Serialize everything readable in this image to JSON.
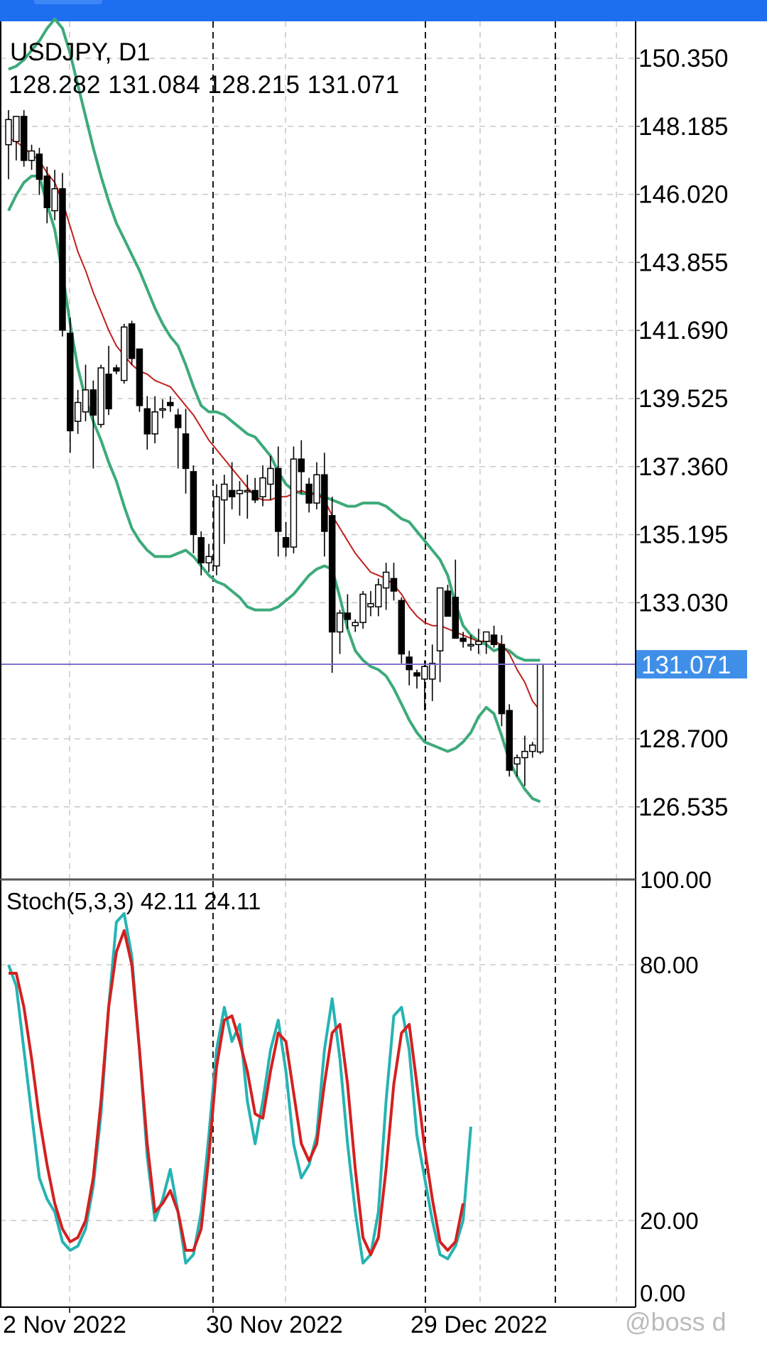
{
  "header": {
    "symbol_timeframe": "USDJPY, D1",
    "ohlc": "128.282 131.084 128.215 131.071"
  },
  "price_axis": {
    "ticks": [
      "150.350",
      "148.185",
      "146.020",
      "143.855",
      "141.690",
      "139.525",
      "137.360",
      "135.195",
      "133.030",
      "128.700",
      "126.535"
    ],
    "current_price_label": "131.071",
    "current_price": 131.071
  },
  "stoch_panel": {
    "title": "Stoch(5,3,3) 42.11 24.11",
    "ticks": [
      "100.00",
      "80.00",
      "20.00",
      "0.00"
    ]
  },
  "time_axis": {
    "labels": [
      "2 Nov 2022",
      "30 Nov 2022",
      "29 Dec 2022"
    ]
  },
  "watermark": "@boss d",
  "colors": {
    "background": "#ffffff",
    "bollinger_bands": "#3daa7a",
    "moving_average": "#c0201c",
    "stoch_main": "#26b3b3",
    "stoch_signal": "#d42020",
    "price_line": "#7b68c9",
    "price_label_bg": "#3f8fe8",
    "top_bar": "#1e6ef2"
  },
  "chart_data": {
    "type": "candlestick",
    "symbol": "USDJPY",
    "timeframe": "D1",
    "price_range": [
      124.5,
      151.3
    ],
    "candles": [
      [
        147.6,
        148.7,
        146.5,
        148.4
      ],
      [
        147.7,
        148.5,
        147.1,
        148.5
      ],
      [
        148.5,
        148.7,
        146.9,
        147.1
      ],
      [
        147.1,
        147.6,
        146.8,
        147.4
      ],
      [
        147.3,
        147.5,
        146.0,
        146.5
      ],
      [
        146.6,
        146.9,
        145.1,
        145.6
      ],
      [
        145.5,
        146.8,
        145.2,
        146.2
      ],
      [
        146.2,
        146.7,
        141.5,
        141.7
      ],
      [
        141.6,
        142.1,
        137.8,
        138.5
      ],
      [
        138.8,
        139.8,
        138.4,
        139.4
      ],
      [
        139.1,
        140.6,
        138.8,
        139.8
      ],
      [
        139.8,
        140.1,
        137.3,
        139.0
      ],
      [
        138.7,
        140.6,
        138.6,
        140.5
      ],
      [
        140.3,
        141.2,
        139.0,
        139.2
      ],
      [
        140.5,
        140.6,
        140.3,
        140.4
      ],
      [
        140.1,
        141.9,
        140.0,
        141.8
      ],
      [
        141.9,
        142.0,
        140.6,
        140.8
      ],
      [
        141.1,
        141.1,
        139.1,
        139.3
      ],
      [
        139.2,
        139.6,
        137.9,
        138.4
      ],
      [
        138.4,
        139.6,
        138.1,
        139.1
      ],
      [
        139.2,
        139.5,
        138.9,
        139.2
      ],
      [
        139.4,
        139.6,
        139.1,
        139.3
      ],
      [
        139.0,
        139.2,
        137.3,
        138.6
      ],
      [
        138.4,
        139.2,
        136.5,
        137.3
      ],
      [
        137.2,
        137.4,
        134.6,
        135.2
      ],
      [
        135.1,
        135.3,
        133.9,
        134.3
      ],
      [
        134.3,
        134.9,
        134.0,
        134.5
      ],
      [
        134.2,
        136.8,
        133.9,
        136.4
      ],
      [
        136.3,
        137.1,
        134.9,
        136.8
      ],
      [
        136.6,
        137.5,
        136.0,
        136.4
      ],
      [
        136.5,
        136.9,
        135.8,
        136.6
      ],
      [
        136.6,
        137.1,
        135.7,
        136.6
      ],
      [
        136.6,
        137.0,
        136.2,
        136.3
      ],
      [
        136.4,
        137.4,
        136.1,
        137.0
      ],
      [
        136.8,
        137.7,
        136.3,
        137.3
      ],
      [
        137.3,
        138.0,
        134.5,
        135.3
      ],
      [
        135.1,
        135.6,
        134.5,
        134.8
      ],
      [
        134.8,
        138.0,
        134.6,
        137.6
      ],
      [
        137.6,
        138.2,
        136.5,
        137.2
      ],
      [
        136.8,
        137.0,
        135.9,
        136.2
      ],
      [
        136.2,
        137.5,
        136.0,
        137.1
      ],
      [
        137.1,
        137.8,
        134.5,
        135.3
      ],
      [
        135.8,
        136.4,
        130.8,
        132.1
      ],
      [
        132.1,
        132.8,
        131.4,
        132.7
      ],
      [
        132.7,
        133.3,
        132.2,
        132.5
      ],
      [
        132.3,
        132.5,
        132.1,
        132.4
      ],
      [
        132.4,
        133.4,
        132.2,
        133.3
      ],
      [
        132.9,
        133.4,
        132.6,
        133.0
      ],
      [
        132.9,
        133.8,
        132.6,
        133.6
      ],
      [
        133.5,
        134.3,
        132.8,
        134.0
      ],
      [
        133.8,
        134.3,
        133.1,
        133.4
      ],
      [
        133.1,
        133.2,
        131.1,
        131.4
      ],
      [
        131.3,
        131.5,
        130.4,
        130.9
      ],
      [
        130.8,
        130.9,
        130.3,
        130.7
      ],
      [
        130.6,
        131.2,
        129.6,
        131.0
      ],
      [
        130.6,
        131.7,
        129.9,
        131.1
      ],
      [
        131.5,
        133.3,
        130.5,
        133.5
      ],
      [
        133.4,
        133.6,
        132.6,
        132.6
      ],
      [
        133.2,
        134.4,
        132.0,
        131.9
      ],
      [
        131.9,
        132.1,
        131.6,
        131.8
      ],
      [
        131.7,
        132.0,
        131.5,
        131.7
      ],
      [
        131.7,
        132.2,
        131.4,
        131.8
      ],
      [
        131.8,
        132.1,
        131.4,
        132.1
      ],
      [
        132.0,
        132.3,
        131.6,
        131.7
      ],
      [
        131.7,
        132.0,
        129.1,
        129.5
      ],
      [
        129.6,
        129.8,
        127.5,
        127.7
      ],
      [
        127.9,
        128.2,
        127.5,
        128.1
      ],
      [
        128.1,
        128.8,
        127.2,
        128.3
      ],
      [
        128.3,
        128.6,
        128.1,
        128.5
      ],
      [
        128.282,
        131.084,
        128.215,
        131.071
      ]
    ],
    "ma": [
      147.8,
      147.7,
      147.5,
      147.3,
      147.1,
      146.7,
      146.4,
      145.8,
      145.0,
      144.2,
      143.6,
      142.9,
      142.3,
      141.7,
      141.2,
      140.9,
      140.6,
      140.4,
      140.3,
      140.1,
      140.0,
      139.9,
      139.6,
      139.3,
      139.0,
      138.6,
      138.2,
      137.9,
      137.6,
      137.3,
      137.0,
      136.7,
      136.4,
      136.3,
      136.3,
      136.4,
      136.4,
      136.5,
      136.6,
      136.5,
      136.5,
      136.3,
      135.8,
      135.4,
      135.0,
      134.6,
      134.3,
      134.0,
      133.9,
      133.8,
      133.6,
      133.3,
      132.9,
      132.6,
      132.4,
      132.3,
      132.3,
      132.2,
      132.1,
      132.0,
      131.9,
      131.8,
      131.8,
      131.8,
      131.7,
      131.4,
      130.9,
      130.5,
      129.9,
      129.6
    ],
    "bb_upper": [
      150.0,
      150.1,
      150.3,
      150.6,
      150.9,
      151.3,
      151.6,
      151.3,
      150.5,
      149.5,
      148.5,
      147.5,
      146.6,
      145.8,
      145.1,
      144.6,
      144.1,
      143.6,
      143.0,
      142.4,
      141.9,
      141.5,
      141.2,
      140.6,
      139.9,
      139.3,
      139.1,
      139.1,
      139.0,
      138.8,
      138.6,
      138.4,
      138.3,
      138.0,
      137.7,
      137.2,
      136.8,
      136.6,
      136.5,
      136.5,
      136.5,
      136.4,
      136.3,
      136.2,
      136.1,
      136.1,
      136.2,
      136.2,
      136.2,
      136.1,
      135.9,
      135.7,
      135.6,
      135.3,
      135.0,
      134.7,
      134.4,
      133.9,
      133.0,
      132.3,
      132.0,
      131.8,
      131.7,
      131.5,
      131.6,
      131.5,
      131.3,
      131.2,
      131.2,
      131.2
    ],
    "bb_lower": [
      145.5,
      146.0,
      146.4,
      146.6,
      146.6,
      145.7,
      144.9,
      143.5,
      141.9,
      140.5,
      139.5,
      138.8,
      138.2,
      137.5,
      136.9,
      136.1,
      135.4,
      135.0,
      134.7,
      134.5,
      134.5,
      134.5,
      134.6,
      134.7,
      134.5,
      134.2,
      133.9,
      133.7,
      133.6,
      133.4,
      133.2,
      132.9,
      132.8,
      132.8,
      132.8,
      132.9,
      133.1,
      133.3,
      133.6,
      133.9,
      134.1,
      134.2,
      134.1,
      133.2,
      132.2,
      131.5,
      131.2,
      131.0,
      130.9,
      130.7,
      130.3,
      129.8,
      129.3,
      128.9,
      128.6,
      128.5,
      128.4,
      128.3,
      128.4,
      128.6,
      128.9,
      129.4,
      129.7,
      129.5,
      128.8,
      128.0,
      127.5,
      127.1,
      126.8,
      126.7
    ],
    "stoch_main": [
      80,
      75,
      60,
      45,
      30,
      25,
      22,
      15,
      13,
      14,
      18,
      28,
      45,
      70,
      90,
      92,
      82,
      60,
      35,
      20,
      25,
      32,
      22,
      10,
      12,
      22,
      40,
      60,
      70,
      62,
      66,
      48,
      38,
      48,
      60,
      67,
      55,
      38,
      30,
      33,
      40,
      60,
      72,
      58,
      38,
      22,
      10,
      12,
      22,
      48,
      68,
      70,
      60,
      40,
      30,
      20,
      12,
      11,
      14,
      20,
      42
    ],
    "stoch_signal": [
      78,
      78,
      70,
      58,
      44,
      33,
      24,
      18,
      15,
      16,
      20,
      30,
      48,
      70,
      83,
      88,
      80,
      60,
      38,
      22,
      24,
      27,
      22,
      13,
      13,
      18,
      35,
      56,
      67,
      68,
      62,
      55,
      45,
      44,
      55,
      64,
      62,
      50,
      38,
      34,
      38,
      52,
      64,
      66,
      52,
      32,
      16,
      12,
      16,
      32,
      52,
      64,
      66,
      52,
      37,
      25,
      15,
      13,
      15,
      24
    ]
  }
}
